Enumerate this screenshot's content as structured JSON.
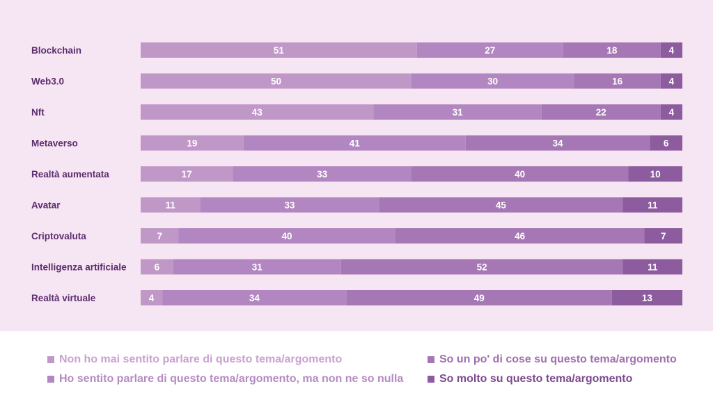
{
  "colors": {
    "background": "#f6e5f2",
    "series": [
      "#c098c8",
      "#b287c1",
      "#a577b4",
      "#8c5c9f"
    ],
    "legend_text": [
      "#c9a1d0",
      "#b58ac2",
      "#a070b0",
      "#7c4a8f"
    ],
    "category_text": "#5b2d6e"
  },
  "chart_data": {
    "type": "bar",
    "orientation": "horizontal",
    "stacked": true,
    "categories": [
      "Blockchain",
      "Web3.0",
      "Nft",
      "Metaverso",
      "Realtà aumentata",
      "Avatar",
      "Criptovaluta",
      "Intelligenza artificiale",
      "Realtà virtuale"
    ],
    "series": [
      {
        "name": "Non ho mai sentito parlare di questo tema/argomento",
        "values": [
          51,
          50,
          43,
          19,
          17,
          11,
          7,
          6,
          4
        ]
      },
      {
        "name": "Ho sentito parlare di questo tema/argomento, ma non ne so nulla",
        "values": [
          27,
          30,
          31,
          41,
          33,
          33,
          40,
          31,
          34
        ]
      },
      {
        "name": "So un po' di cose su questo tema/argomento",
        "values": [
          18,
          16,
          22,
          34,
          40,
          45,
          46,
          52,
          49
        ]
      },
      {
        "name": "So molto su questo tema/argomento",
        "values": [
          4,
          4,
          4,
          6,
          10,
          11,
          7,
          11,
          13
        ]
      }
    ],
    "xlim": [
      0,
      100
    ],
    "grid": false,
    "legend_position": "bottom"
  },
  "legend": {
    "items": [
      {
        "label": "Non ho mai sentito parlare di questo tema/argomento"
      },
      {
        "label": "Ho sentito parlare di questo tema/argomento, ma non ne so nulla"
      },
      {
        "label": "So un po' di cose su questo tema/argomento"
      },
      {
        "label": "So molto su questo tema/argomento"
      }
    ]
  }
}
